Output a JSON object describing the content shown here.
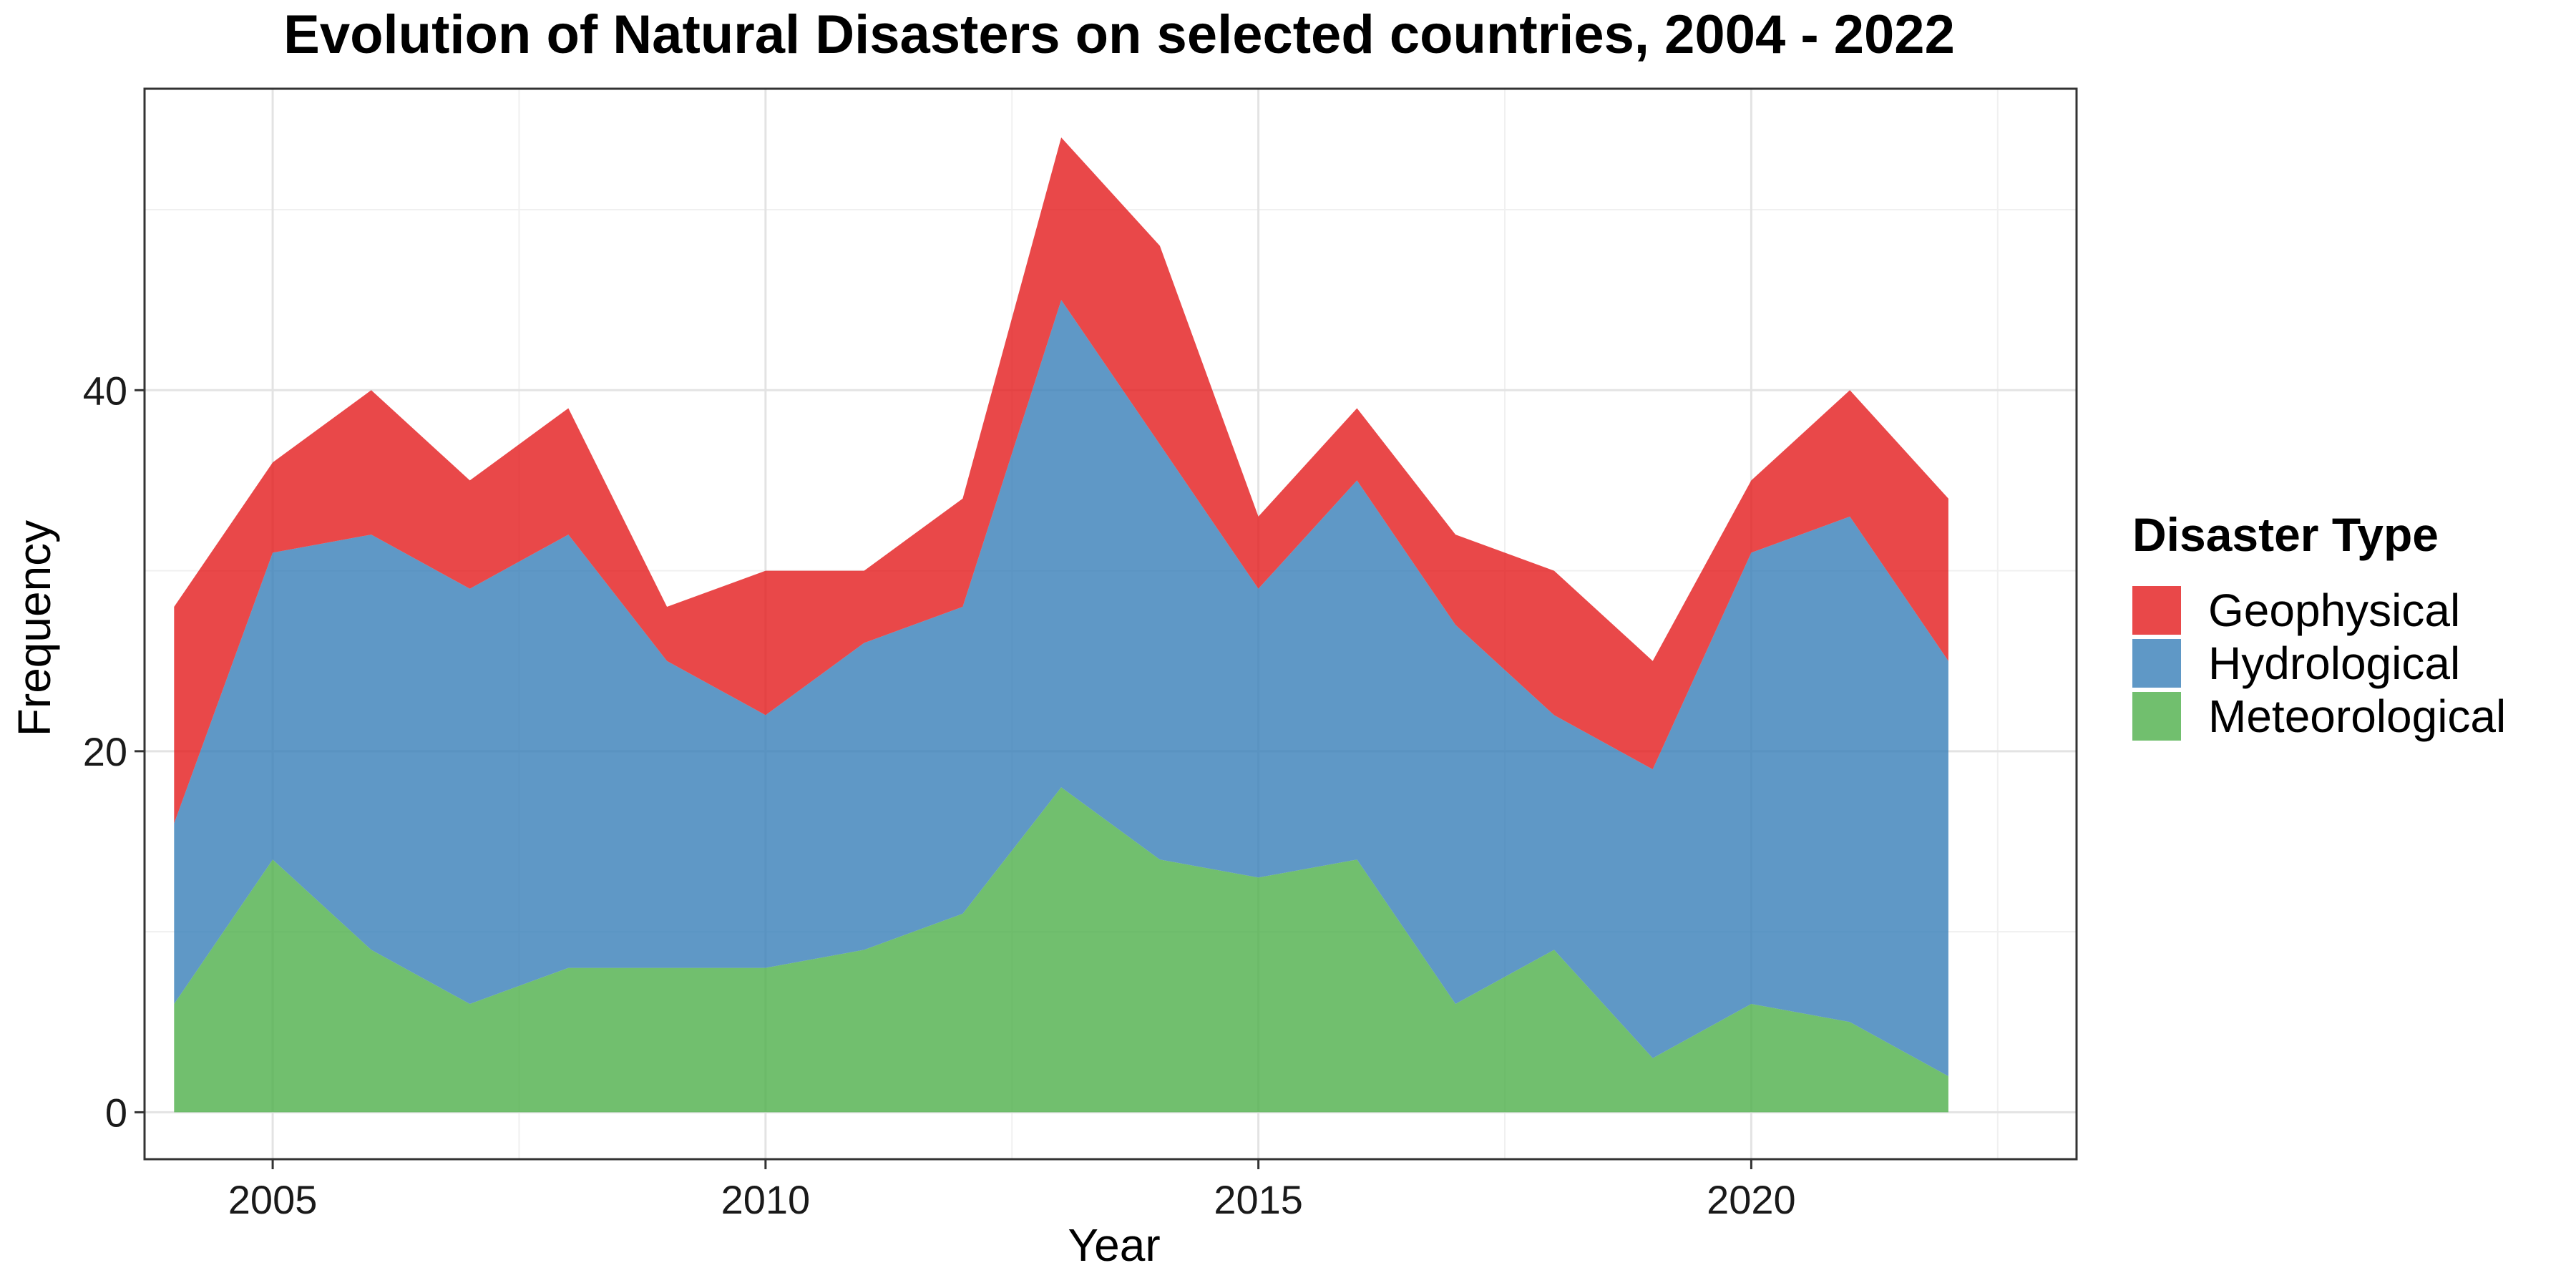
{
  "chart_data": {
    "type": "area",
    "stacked": true,
    "title": "Evolution of Natural Disasters on selected countries, 2004 - 2022",
    "xlabel": "Year",
    "ylabel": "Frequency",
    "xlim": [
      2003.7,
      2023.3
    ],
    "ylim": [
      -2.6,
      56.7
    ],
    "x_ticks": [
      2005,
      2010,
      2015,
      2020
    ],
    "y_ticks": [
      0,
      20,
      40
    ],
    "grid": true,
    "legend": {
      "title": "Disaster Type",
      "position": "right"
    },
    "x": [
      2004,
      2005,
      2006,
      2007,
      2008,
      2009,
      2010,
      2011,
      2012,
      2013,
      2014,
      2015,
      2016,
      2017,
      2018,
      2019,
      2020,
      2021,
      2022
    ],
    "series": [
      {
        "name": "Geophysical",
        "color": "#E41A1C",
        "values": [
          12,
          5,
          8,
          6,
          7,
          3,
          8,
          4,
          6,
          9,
          11,
          4,
          4,
          5,
          8,
          6,
          4,
          7,
          9
        ]
      },
      {
        "name": "Hydrological",
        "color": "#377EB8",
        "values": [
          10,
          17,
          23,
          23,
          24,
          17,
          14,
          17,
          17,
          27,
          23,
          16,
          21,
          21,
          13,
          16,
          25,
          28,
          23
        ]
      },
      {
        "name": "Meteorological",
        "color": "#4DAF4A",
        "values": [
          6,
          14,
          9,
          6,
          8,
          8,
          8,
          9,
          11,
          18,
          14,
          13,
          14,
          6,
          9,
          3,
          6,
          5,
          2
        ]
      }
    ]
  }
}
